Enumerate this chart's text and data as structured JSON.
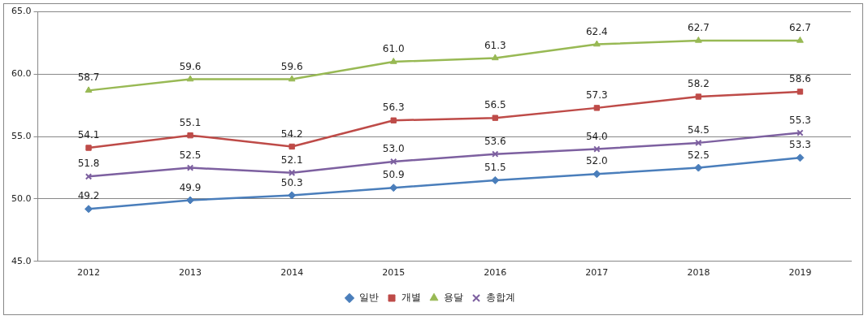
{
  "chart_data": {
    "type": "line",
    "categories": [
      "2012",
      "2013",
      "2014",
      "2015",
      "2016",
      "2017",
      "2018",
      "2019"
    ],
    "ylim": [
      45,
      65
    ],
    "yticks": [
      {
        "value": 45,
        "label": "45.0"
      },
      {
        "value": 50,
        "label": "50.0"
      },
      {
        "value": 55,
        "label": "55.0"
      },
      {
        "value": 60,
        "label": "60.0"
      },
      {
        "value": 65,
        "label": "65.0"
      }
    ],
    "grid": "y",
    "legend": "bottom",
    "line_style": "solid",
    "series": [
      {
        "name": "일반",
        "color": "#4a7ebb",
        "marker": "diamond",
        "values": [
          49.2,
          49.9,
          50.3,
          50.9,
          51.5,
          52.0,
          52.5,
          53.3
        ],
        "value_labels": [
          "49.2",
          "49.9",
          "50.3",
          "50.9",
          "51.5",
          "52.0",
          "52.5",
          "53.3"
        ]
      },
      {
        "name": "개별",
        "color": "#be4b48",
        "marker": "square",
        "values": [
          54.1,
          55.1,
          54.2,
          56.3,
          56.5,
          57.3,
          58.2,
          58.6
        ],
        "value_labels": [
          "54.1",
          "55.1",
          "54.2",
          "56.3",
          "56.5",
          "57.3",
          "58.2",
          "58.6"
        ]
      },
      {
        "name": "용달",
        "color": "#98b954",
        "marker": "triangle",
        "values": [
          58.7,
          59.6,
          59.6,
          61.0,
          61.3,
          62.4,
          62.7,
          62.7
        ],
        "value_labels": [
          "58.7",
          "59.6",
          "59.6",
          "61.0",
          "61.3",
          "62.4",
          "62.7",
          "62.7"
        ]
      },
      {
        "name": "총합계",
        "color": "#7d60a0",
        "marker": "cross",
        "values": [
          51.8,
          52.5,
          52.1,
          53.0,
          53.6,
          54.0,
          54.5,
          55.3
        ],
        "value_labels": [
          "51.8",
          "52.5",
          "52.1",
          "53.0",
          "53.6",
          "54.0",
          "54.5",
          "55.3"
        ]
      }
    ]
  }
}
